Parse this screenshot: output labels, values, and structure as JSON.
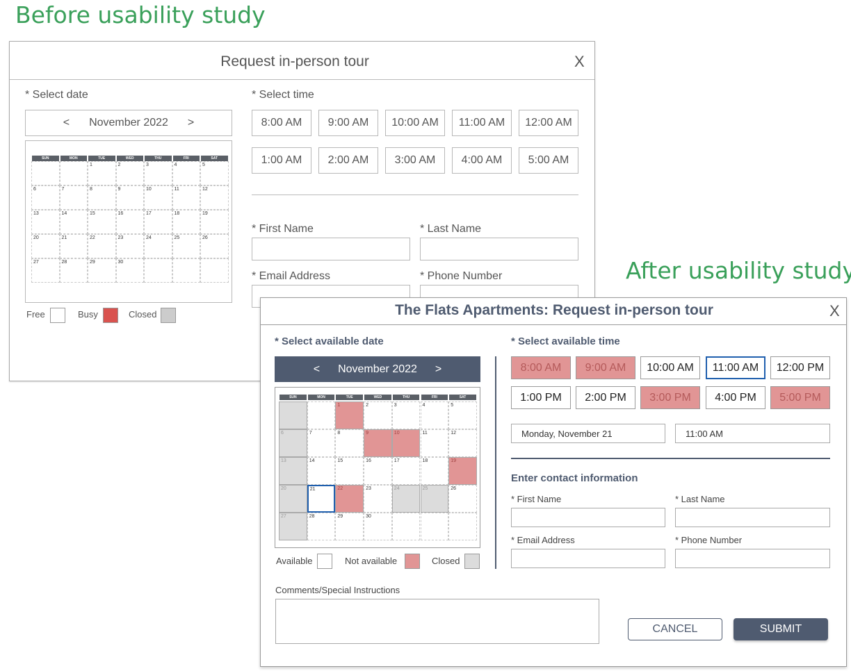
{
  "headings": {
    "before": "Before usability study",
    "after": "After usability study"
  },
  "before": {
    "title": "Request in-person tour",
    "close": "X",
    "date_label": "* Select date",
    "time_label": "* Select time",
    "prev": "<",
    "next": ">",
    "month": "November 2022",
    "weekdays": [
      "SUN",
      "MON",
      "TUE",
      "WED",
      "THU",
      "FRI",
      "SAT"
    ],
    "times": [
      "8:00 AM",
      "9:00 AM",
      "10:00 AM",
      "11:00 AM",
      "12:00 AM",
      "1:00 AM",
      "2:00 AM",
      "3:00 AM",
      "4:00 AM",
      "5:00 AM"
    ],
    "first_name": "* First Name",
    "last_name": "* Last Name",
    "email": "* Email Address",
    "phone": "* Phone Number",
    "legend": {
      "free": "Free",
      "busy": "Busy",
      "closed": "Closed"
    },
    "colors": {
      "busy": "#d9534f",
      "closed": "#cccccc"
    }
  },
  "after": {
    "title": "The Flats Apartments: Request in-person tour",
    "close": "X",
    "date_label": "* Select available date",
    "time_label": "* Select available time",
    "prev": "<",
    "next": ">",
    "month": "November 2022",
    "weekdays": [
      "SUN",
      "MON",
      "TUE",
      "WED",
      "THU",
      "FRI",
      "SAT"
    ],
    "times": [
      {
        "label": "8:00 AM",
        "state": "na"
      },
      {
        "label": "9:00 AM",
        "state": "na"
      },
      {
        "label": "10:00 AM",
        "state": "available"
      },
      {
        "label": "11:00 AM",
        "state": "selected"
      },
      {
        "label": "12:00 PM",
        "state": "available"
      },
      {
        "label": "1:00 PM",
        "state": "available"
      },
      {
        "label": "2:00 PM",
        "state": "available"
      },
      {
        "label": "3:00 PM",
        "state": "na"
      },
      {
        "label": "4:00 PM",
        "state": "available"
      },
      {
        "label": "5:00 PM",
        "state": "na"
      }
    ],
    "selected_date": "Monday, November 21",
    "selected_time": "11:00 AM",
    "contact_heading": "Enter contact information",
    "first_name": "* First Name",
    "last_name": "* Last Name",
    "email": "* Email Address",
    "phone": "* Phone Number",
    "comments": "Comments/Special Instructions",
    "cancel": "CANCEL",
    "submit": "SUBMIT",
    "legend": {
      "available": "Available",
      "not_available": "Not available",
      "closed": "Closed"
    },
    "colors": {
      "accent": "#4f5b70",
      "not_available": "#e19595",
      "closed": "#dcdcdc",
      "selected": "#1f5fae"
    },
    "day_states": {
      "closed": [
        6,
        13,
        20,
        24,
        25,
        27
      ],
      "not_available": [
        1,
        9,
        10,
        19,
        22
      ],
      "selected": [
        21
      ]
    }
  }
}
